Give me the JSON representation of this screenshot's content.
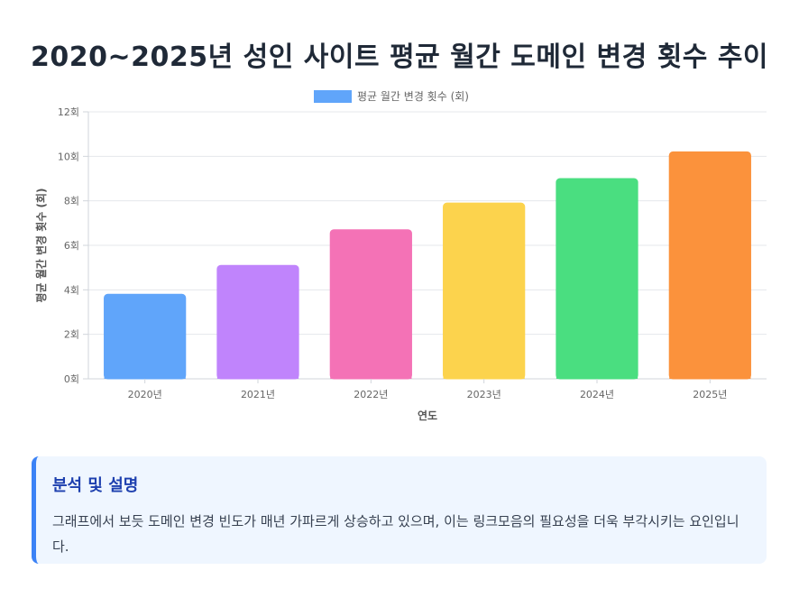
{
  "page": {
    "title": "2020~2025년 성인 사이트 평균 월간 도메인 변경 횟수 추이"
  },
  "chart_data": {
    "type": "bar",
    "categories": [
      "2020년",
      "2021년",
      "2022년",
      "2023년",
      "2024년",
      "2025년"
    ],
    "series": [
      {
        "name": "평균 월간 변경 횟수 (회)",
        "values": [
          3.8,
          5.1,
          6.7,
          7.9,
          9.0,
          10.2
        ]
      }
    ],
    "bar_colors": [
      "#60a5fa",
      "#c084fc",
      "#f472b6",
      "#fcd34d",
      "#4ade80",
      "#fb923c"
    ],
    "xlabel": "연도",
    "ylabel": "평균 월간 변경 횟수 (회)",
    "ylim": [
      0,
      12
    ],
    "yticks": [
      0,
      2,
      4,
      6,
      8,
      10,
      12
    ],
    "ytick_suffix": "회",
    "grid": true,
    "legend_position": "top-center",
    "legend_color": "#60a5fa"
  },
  "analysis": {
    "title": "분석 및 설명",
    "text": "그래프에서 보듯 도메인 변경 빈도가 매년 가파르게 상승하고 있으며, 이는 링크모음의 필요성을 더욱 부각시키는 요인입니다."
  }
}
